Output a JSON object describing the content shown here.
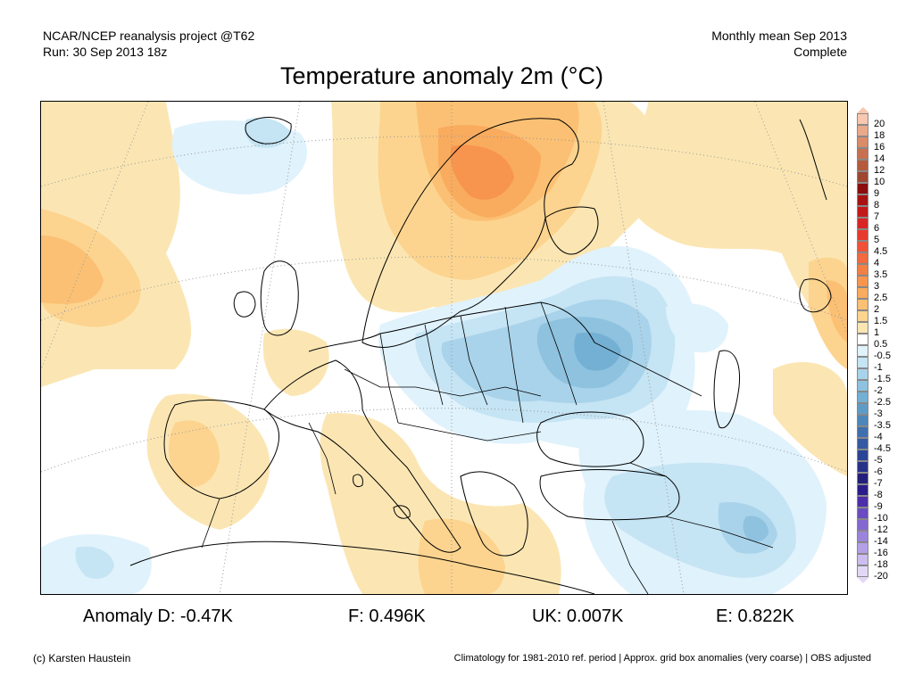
{
  "header": {
    "left_line1": "NCAR/NCEP reanalysis project @T62",
    "left_line2": "Run: 30 Sep 2013 18z",
    "right_line1": "Monthly mean Sep 2013",
    "right_line2": "Complete"
  },
  "title": "Temperature anomaly 2m (°C)",
  "legend": {
    "items": [
      {
        "label": "20",
        "color": "#f8c8b0"
      },
      {
        "label": "18",
        "color": "#eaa98a"
      },
      {
        "label": "16",
        "color": "#da8b68"
      },
      {
        "label": "14",
        "color": "#c87050"
      },
      {
        "label": "12",
        "color": "#b55a3c"
      },
      {
        "label": "10",
        "color": "#9e4630"
      },
      {
        "label": "9",
        "color": "#8b0d0d"
      },
      {
        "label": "8",
        "color": "#a81212"
      },
      {
        "label": "7",
        "color": "#c21a1a"
      },
      {
        "label": "6",
        "color": "#d82424"
      },
      {
        "label": "5",
        "color": "#e8392e"
      },
      {
        "label": "4.5",
        "color": "#ef5238"
      },
      {
        "label": "4",
        "color": "#f26a3e"
      },
      {
        "label": "3.5",
        "color": "#f47f45"
      },
      {
        "label": "3",
        "color": "#f7944e"
      },
      {
        "label": "2.5",
        "color": "#f9ab5e"
      },
      {
        "label": "2",
        "color": "#fbc073"
      },
      {
        "label": "1.5",
        "color": "#fcd48f"
      },
      {
        "label": "1",
        "color": "#fbe6b3"
      },
      {
        "label": "0.5",
        "color": "#ffffff"
      },
      {
        "label": "-0.5",
        "color": "#e0f2fc"
      },
      {
        "label": "-1",
        "color": "#c5e4f4"
      },
      {
        "label": "-1.5",
        "color": "#a9d3ea"
      },
      {
        "label": "-2",
        "color": "#8ec2df"
      },
      {
        "label": "-2.5",
        "color": "#74b0d4"
      },
      {
        "label": "-3",
        "color": "#5e9cc7"
      },
      {
        "label": "-3.5",
        "color": "#4c86ba"
      },
      {
        "label": "-4",
        "color": "#3f6fae"
      },
      {
        "label": "-4.5",
        "color": "#3559a2"
      },
      {
        "label": "-5",
        "color": "#2c4496"
      },
      {
        "label": "-6",
        "color": "#263288"
      },
      {
        "label": "-7",
        "color": "#231f7a"
      },
      {
        "label": "-8",
        "color": "#2a1c8a"
      },
      {
        "label": "-9",
        "color": "#4c2ea8"
      },
      {
        "label": "-10",
        "color": "#6a4cc0"
      },
      {
        "label": "-12",
        "color": "#8468d0"
      },
      {
        "label": "-14",
        "color": "#9c84dc"
      },
      {
        "label": "-16",
        "color": "#b4a0e6"
      },
      {
        "label": "-18",
        "color": "#ccbcef"
      },
      {
        "label": "-20",
        "color": "#e2d8f6"
      }
    ]
  },
  "stats": {
    "anomaly_d": "Anomaly D: -0.47K",
    "f": "F: 0.496K",
    "uk": "UK: 0.007K",
    "e": "E: 0.822K"
  },
  "footer": {
    "left": "(c) Karsten Haustein",
    "right": "Climatology for 1981-2010 ref. period | Approx. grid box anomalies (very coarse) | OBS adjusted"
  }
}
